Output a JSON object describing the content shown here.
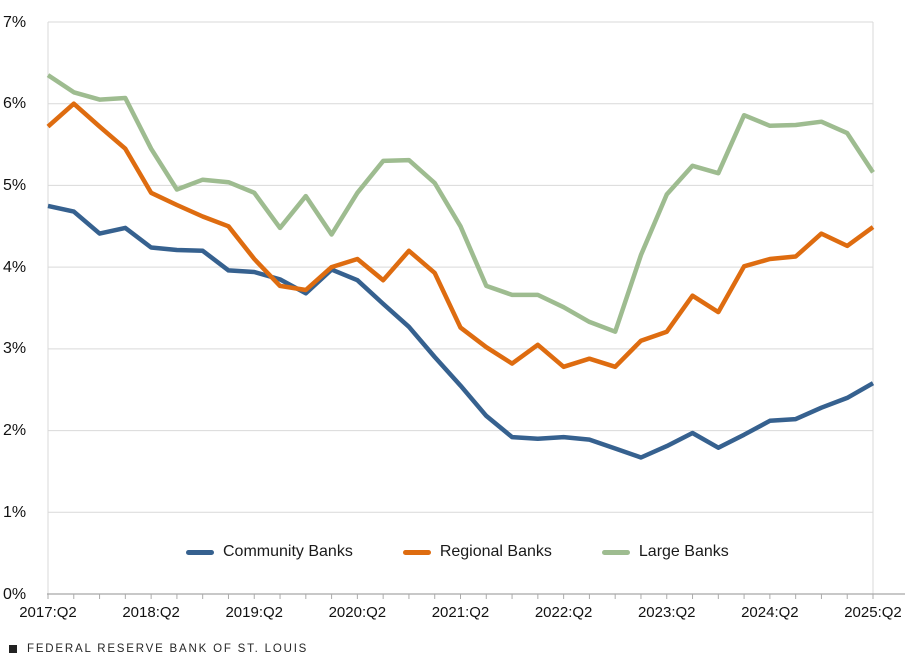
{
  "chart_data": {
    "type": "line",
    "title": "",
    "x_categories": [
      "2017:Q2",
      "2017:Q3",
      "2017:Q4",
      "2018:Q1",
      "2018:Q2",
      "2018:Q3",
      "2018:Q4",
      "2019:Q1",
      "2019:Q2",
      "2019:Q3",
      "2019:Q4",
      "2020:Q1",
      "2020:Q2",
      "2020:Q3",
      "2020:Q4",
      "2021:Q1",
      "2021:Q2",
      "2021:Q3",
      "2021:Q4",
      "2022:Q1",
      "2022:Q2",
      "2022:Q3",
      "2022:Q4",
      "2023:Q1",
      "2023:Q2",
      "2023:Q3",
      "2023:Q4",
      "2024:Q1",
      "2024:Q2",
      "2024:Q3",
      "2024:Q4",
      "2025:Q1",
      "2025:Q2"
    ],
    "x_tick_labels": [
      "2017:Q2",
      "2018:Q2",
      "2019:Q2",
      "2020:Q2",
      "2021:Q2",
      "2022:Q2",
      "2023:Q2",
      "2024:Q2",
      "2025:Q2"
    ],
    "y_tick_labels": [
      "0%",
      "1%",
      "2%",
      "3%",
      "4%",
      "5%",
      "6%",
      "7%"
    ],
    "ylim": [
      0,
      7
    ],
    "grid": "horizontal",
    "legend_position": "bottom-center",
    "series": [
      {
        "name": "Community Banks",
        "color": "#36618F",
        "values": [
          4.75,
          4.68,
          4.41,
          4.48,
          4.24,
          4.21,
          4.2,
          3.96,
          3.94,
          3.85,
          3.68,
          3.97,
          3.84,
          3.55,
          3.27,
          2.9,
          2.55,
          2.18,
          1.92,
          1.9,
          1.92,
          1.89,
          1.78,
          1.67,
          1.81,
          1.97,
          1.79,
          1.95,
          2.12,
          2.14,
          2.28,
          2.4,
          2.58
        ]
      },
      {
        "name": "Regional Banks",
        "color": "#DE6C10",
        "values": [
          5.72,
          6.0,
          5.72,
          5.45,
          4.91,
          4.76,
          4.62,
          4.5,
          4.1,
          3.77,
          3.72,
          4.0,
          4.1,
          3.84,
          4.2,
          3.93,
          3.26,
          3.02,
          2.82,
          3.05,
          2.78,
          2.88,
          2.78,
          3.1,
          3.21,
          3.65,
          3.45,
          4.01,
          4.1,
          4.13,
          4.41,
          4.26,
          4.49
        ]
      },
      {
        "name": "Large Banks",
        "color": "#9EBC90",
        "values": [
          6.35,
          6.14,
          6.05,
          6.07,
          5.45,
          4.95,
          5.07,
          5.04,
          4.91,
          4.48,
          4.87,
          4.4,
          4.91,
          5.3,
          5.31,
          5.03,
          4.5,
          3.77,
          3.66,
          3.66,
          3.51,
          3.33,
          3.21,
          4.15,
          4.89,
          5.24,
          5.15,
          5.86,
          5.73,
          5.74,
          5.78,
          5.64,
          5.16
        ]
      }
    ]
  },
  "colors": {
    "gridline": "#D9D9D9",
    "plot_border": "#D9D9D9",
    "axis_line": "#A6A6A6",
    "tick": "#ABABAB",
    "label_text": "#111111"
  },
  "footer": {
    "source_label": "FEDERAL RESERVE BANK OF ST. LOUIS"
  }
}
